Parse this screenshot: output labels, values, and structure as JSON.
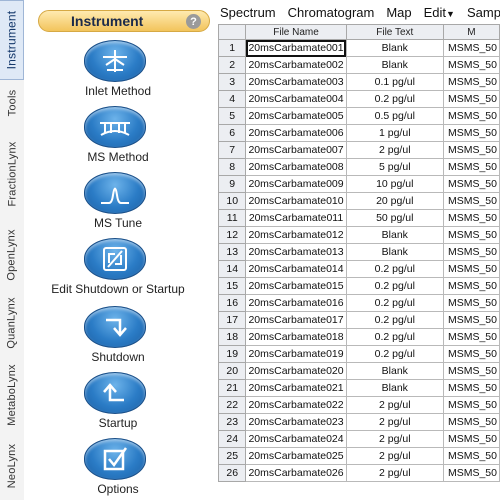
{
  "side_tabs": [
    "Instrument",
    "Tools",
    "FractionLynx",
    "OpenLynx",
    "QuanLynx",
    "MetaboLynx",
    "NeoLynx"
  ],
  "panel": {
    "title": "Instrument",
    "help": "?",
    "tools": [
      {
        "label": "Inlet Method",
        "icon": "inlet-method-icon"
      },
      {
        "label": "MS Method",
        "icon": "ms-method-icon"
      },
      {
        "label": "MS Tune",
        "icon": "ms-tune-icon"
      },
      {
        "label": "Edit Shutdown or Startup",
        "icon": "edit-shutdown-startup-icon"
      },
      {
        "label": "Shutdown",
        "icon": "shutdown-icon"
      },
      {
        "label": "Startup",
        "icon": "startup-icon"
      },
      {
        "label": "Options",
        "icon": "options-icon"
      }
    ]
  },
  "menu": [
    "Spectrum",
    "Chromatogram",
    "Map",
    "Edit",
    "Samp"
  ],
  "table": {
    "columns": [
      "",
      "File Name",
      "File Text",
      "M"
    ],
    "rows": [
      [
        "1",
        "20msCarbamate001",
        "Blank",
        "MSMS_50"
      ],
      [
        "2",
        "20msCarbamate002",
        "Blank",
        "MSMS_50"
      ],
      [
        "3",
        "20msCarbamate003",
        "0.1 pg/ul",
        "MSMS_50"
      ],
      [
        "4",
        "20msCarbamate004",
        "0.2 pg/ul",
        "MSMS_50"
      ],
      [
        "5",
        "20msCarbamate005",
        "0.5 pg/ul",
        "MSMS_50"
      ],
      [
        "6",
        "20msCarbamate006",
        "1 pg/ul",
        "MSMS_50"
      ],
      [
        "7",
        "20msCarbamate007",
        "2 pg/ul",
        "MSMS_50"
      ],
      [
        "8",
        "20msCarbamate008",
        "5 pg/ul",
        "MSMS_50"
      ],
      [
        "9",
        "20msCarbamate009",
        "10 pg/ul",
        "MSMS_50"
      ],
      [
        "10",
        "20msCarbamate010",
        "20 pg/ul",
        "MSMS_50"
      ],
      [
        "11",
        "20msCarbamate011",
        "50 pg/ul",
        "MSMS_50"
      ],
      [
        "12",
        "20msCarbamate012",
        "Blank",
        "MSMS_50"
      ],
      [
        "13",
        "20msCarbamate013",
        "Blank",
        "MSMS_50"
      ],
      [
        "14",
        "20msCarbamate014",
        "0.2 pg/ul",
        "MSMS_50"
      ],
      [
        "15",
        "20msCarbamate015",
        "0.2 pg/ul",
        "MSMS_50"
      ],
      [
        "16",
        "20msCarbamate016",
        "0.2 pg/ul",
        "MSMS_50"
      ],
      [
        "17",
        "20msCarbamate017",
        "0.2 pg/ul",
        "MSMS_50"
      ],
      [
        "18",
        "20msCarbamate018",
        "0.2 pg/ul",
        "MSMS_50"
      ],
      [
        "19",
        "20msCarbamate019",
        "0.2 pg/ul",
        "MSMS_50"
      ],
      [
        "20",
        "20msCarbamate020",
        "Blank",
        "MSMS_50"
      ],
      [
        "21",
        "20msCarbamate021",
        "Blank",
        "MSMS_50"
      ],
      [
        "22",
        "20msCarbamate022",
        "2 pg/ul",
        "MSMS_50"
      ],
      [
        "23",
        "20msCarbamate023",
        "2 pg/ul",
        "MSMS_50"
      ],
      [
        "24",
        "20msCarbamate024",
        "2 pg/ul",
        "MSMS_50"
      ],
      [
        "25",
        "20msCarbamate025",
        "2 pg/ul",
        "MSMS_50"
      ],
      [
        "26",
        "20msCarbamate026",
        "2 pg/ul",
        "MSMS_50"
      ]
    ]
  },
  "colors": {
    "accent_button": "#2b7cc6",
    "header_gold": "#f2c45c",
    "tab_active": "#dfe9f6"
  }
}
